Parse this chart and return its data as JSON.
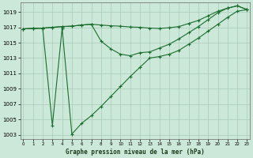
{
  "title": "Graphe pression niveau de la mer (hPa)",
  "bg_color": "#cce8d8",
  "grid_color": "#aaccbb",
  "line_color": "#1a6e2e",
  "hours": [
    0,
    1,
    2,
    3,
    4,
    5,
    6,
    7,
    8,
    9,
    10,
    11,
    12,
    13,
    14,
    15,
    16,
    17,
    18,
    19,
    20,
    21,
    22,
    23
  ],
  "line1": [
    1016.8,
    1016.85,
    1016.9,
    1017.0,
    1017.1,
    1017.15,
    1017.3,
    1017.4,
    1017.3,
    1017.2,
    1017.15,
    1017.05,
    1017.0,
    1016.9,
    1016.85,
    1016.95,
    1017.1,
    1017.5,
    1017.9,
    1018.5,
    1019.1,
    1019.5,
    1019.8,
    1019.3
  ],
  "line2": [
    1016.8,
    1016.85,
    1016.9,
    1004.2,
    1016.9,
    1003.1,
    1004.5,
    1005.5,
    1006.7,
    1008.0,
    1009.3,
    1010.6,
    1011.8,
    1013.0,
    1013.2,
    1013.5,
    1014.0,
    1014.8,
    1015.6,
    1016.5,
    1017.4,
    1018.3,
    1019.1,
    1019.3
  ],
  "line3": [
    1016.8,
    1016.85,
    1016.9,
    1017.0,
    1017.1,
    1017.15,
    1017.3,
    1017.4,
    1015.2,
    1014.2,
    1013.5,
    1013.3,
    1013.7,
    1013.8,
    1014.3,
    1014.8,
    1015.5,
    1016.3,
    1017.1,
    1018.0,
    1018.9,
    1019.5,
    1019.8,
    1019.3
  ],
  "ylim_min": 1002.5,
  "ylim_max": 1020.2,
  "yticks": [
    1003,
    1005,
    1007,
    1009,
    1011,
    1013,
    1015,
    1017,
    1019
  ],
  "xlim_min": -0.3,
  "xlim_max": 23.3
}
